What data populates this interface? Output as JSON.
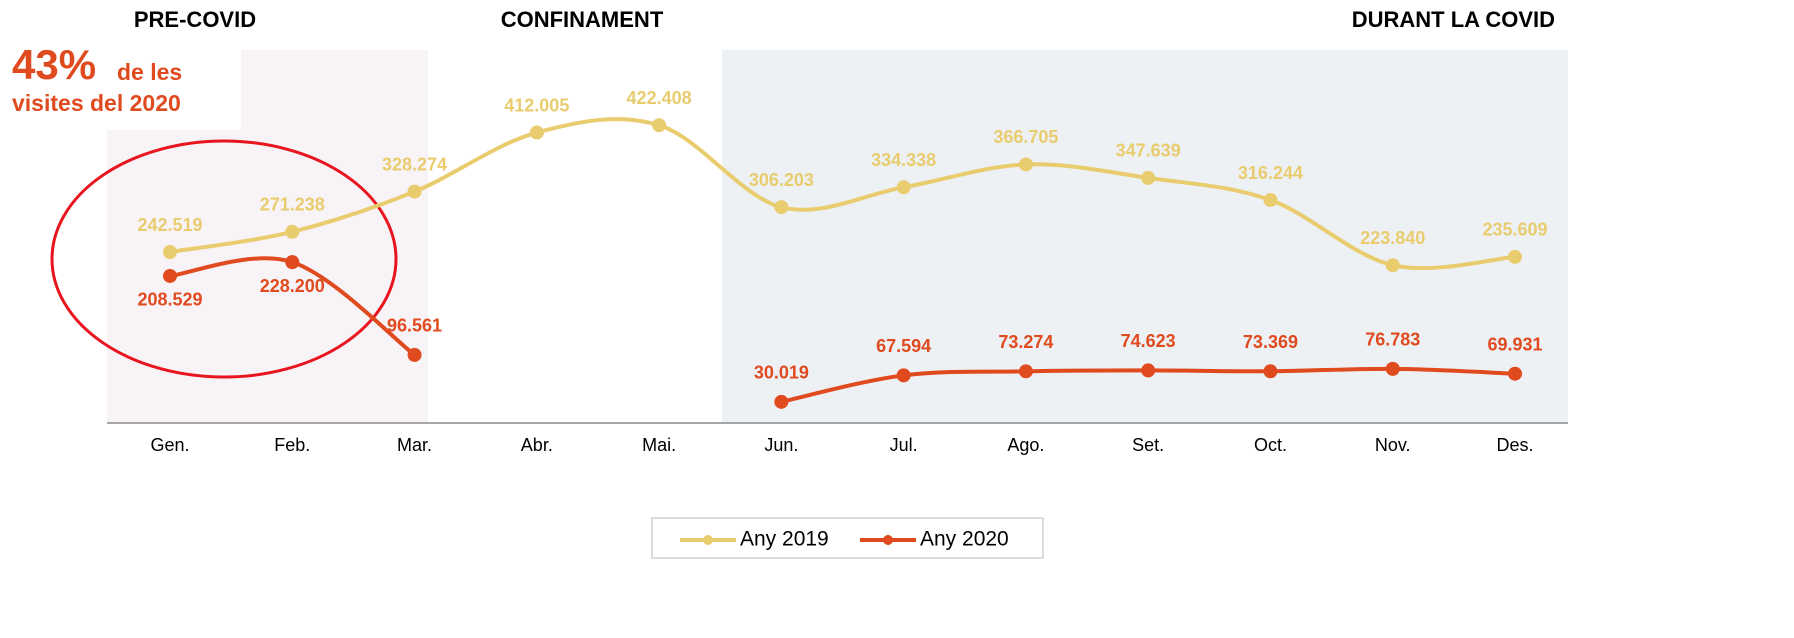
{
  "chart_data": {
    "type": "line",
    "annotations": {
      "pre": "PRE-COVID",
      "conf": "CONFINAMENT",
      "durant": "DURANT LA COVID",
      "pct": "43%",
      "pct_text_1": "de les",
      "pct_text_2": "visites del 2020"
    },
    "categories": [
      "Gen.",
      "Feb.",
      "Mar.",
      "Abr.",
      "Mai.",
      "Jun.",
      "Jul.",
      "Ago.",
      "Set.",
      "Oct.",
      "Nov.",
      "Des."
    ],
    "ylim": [
      0,
      600000
    ],
    "series": [
      {
        "name": "Any 2019",
        "color": "#e8cc6e",
        "values": [
          242519,
          271238,
          328274,
          412005,
          422408,
          306203,
          334338,
          366705,
          347639,
          316244,
          223840,
          235609
        ],
        "value_labels": [
          "242.519",
          "271.238",
          "328.274",
          "412.005",
          "422.408",
          "306.203",
          "334.338",
          "366.705",
          "347.639",
          "316.244",
          "223.840",
          "235.609"
        ]
      },
      {
        "name": "Any 2020",
        "color": "#e04a1f",
        "values": [
          208529,
          228200,
          96561,
          null,
          null,
          30019,
          67594,
          73274,
          74623,
          73369,
          76783,
          69931
        ],
        "value_labels": [
          "208.529",
          "228.200",
          "96.561",
          null,
          null,
          "30.019",
          "67.594",
          "73.274",
          "74.623",
          "73.369",
          "76.783",
          "69.931"
        ]
      }
    ]
  }
}
